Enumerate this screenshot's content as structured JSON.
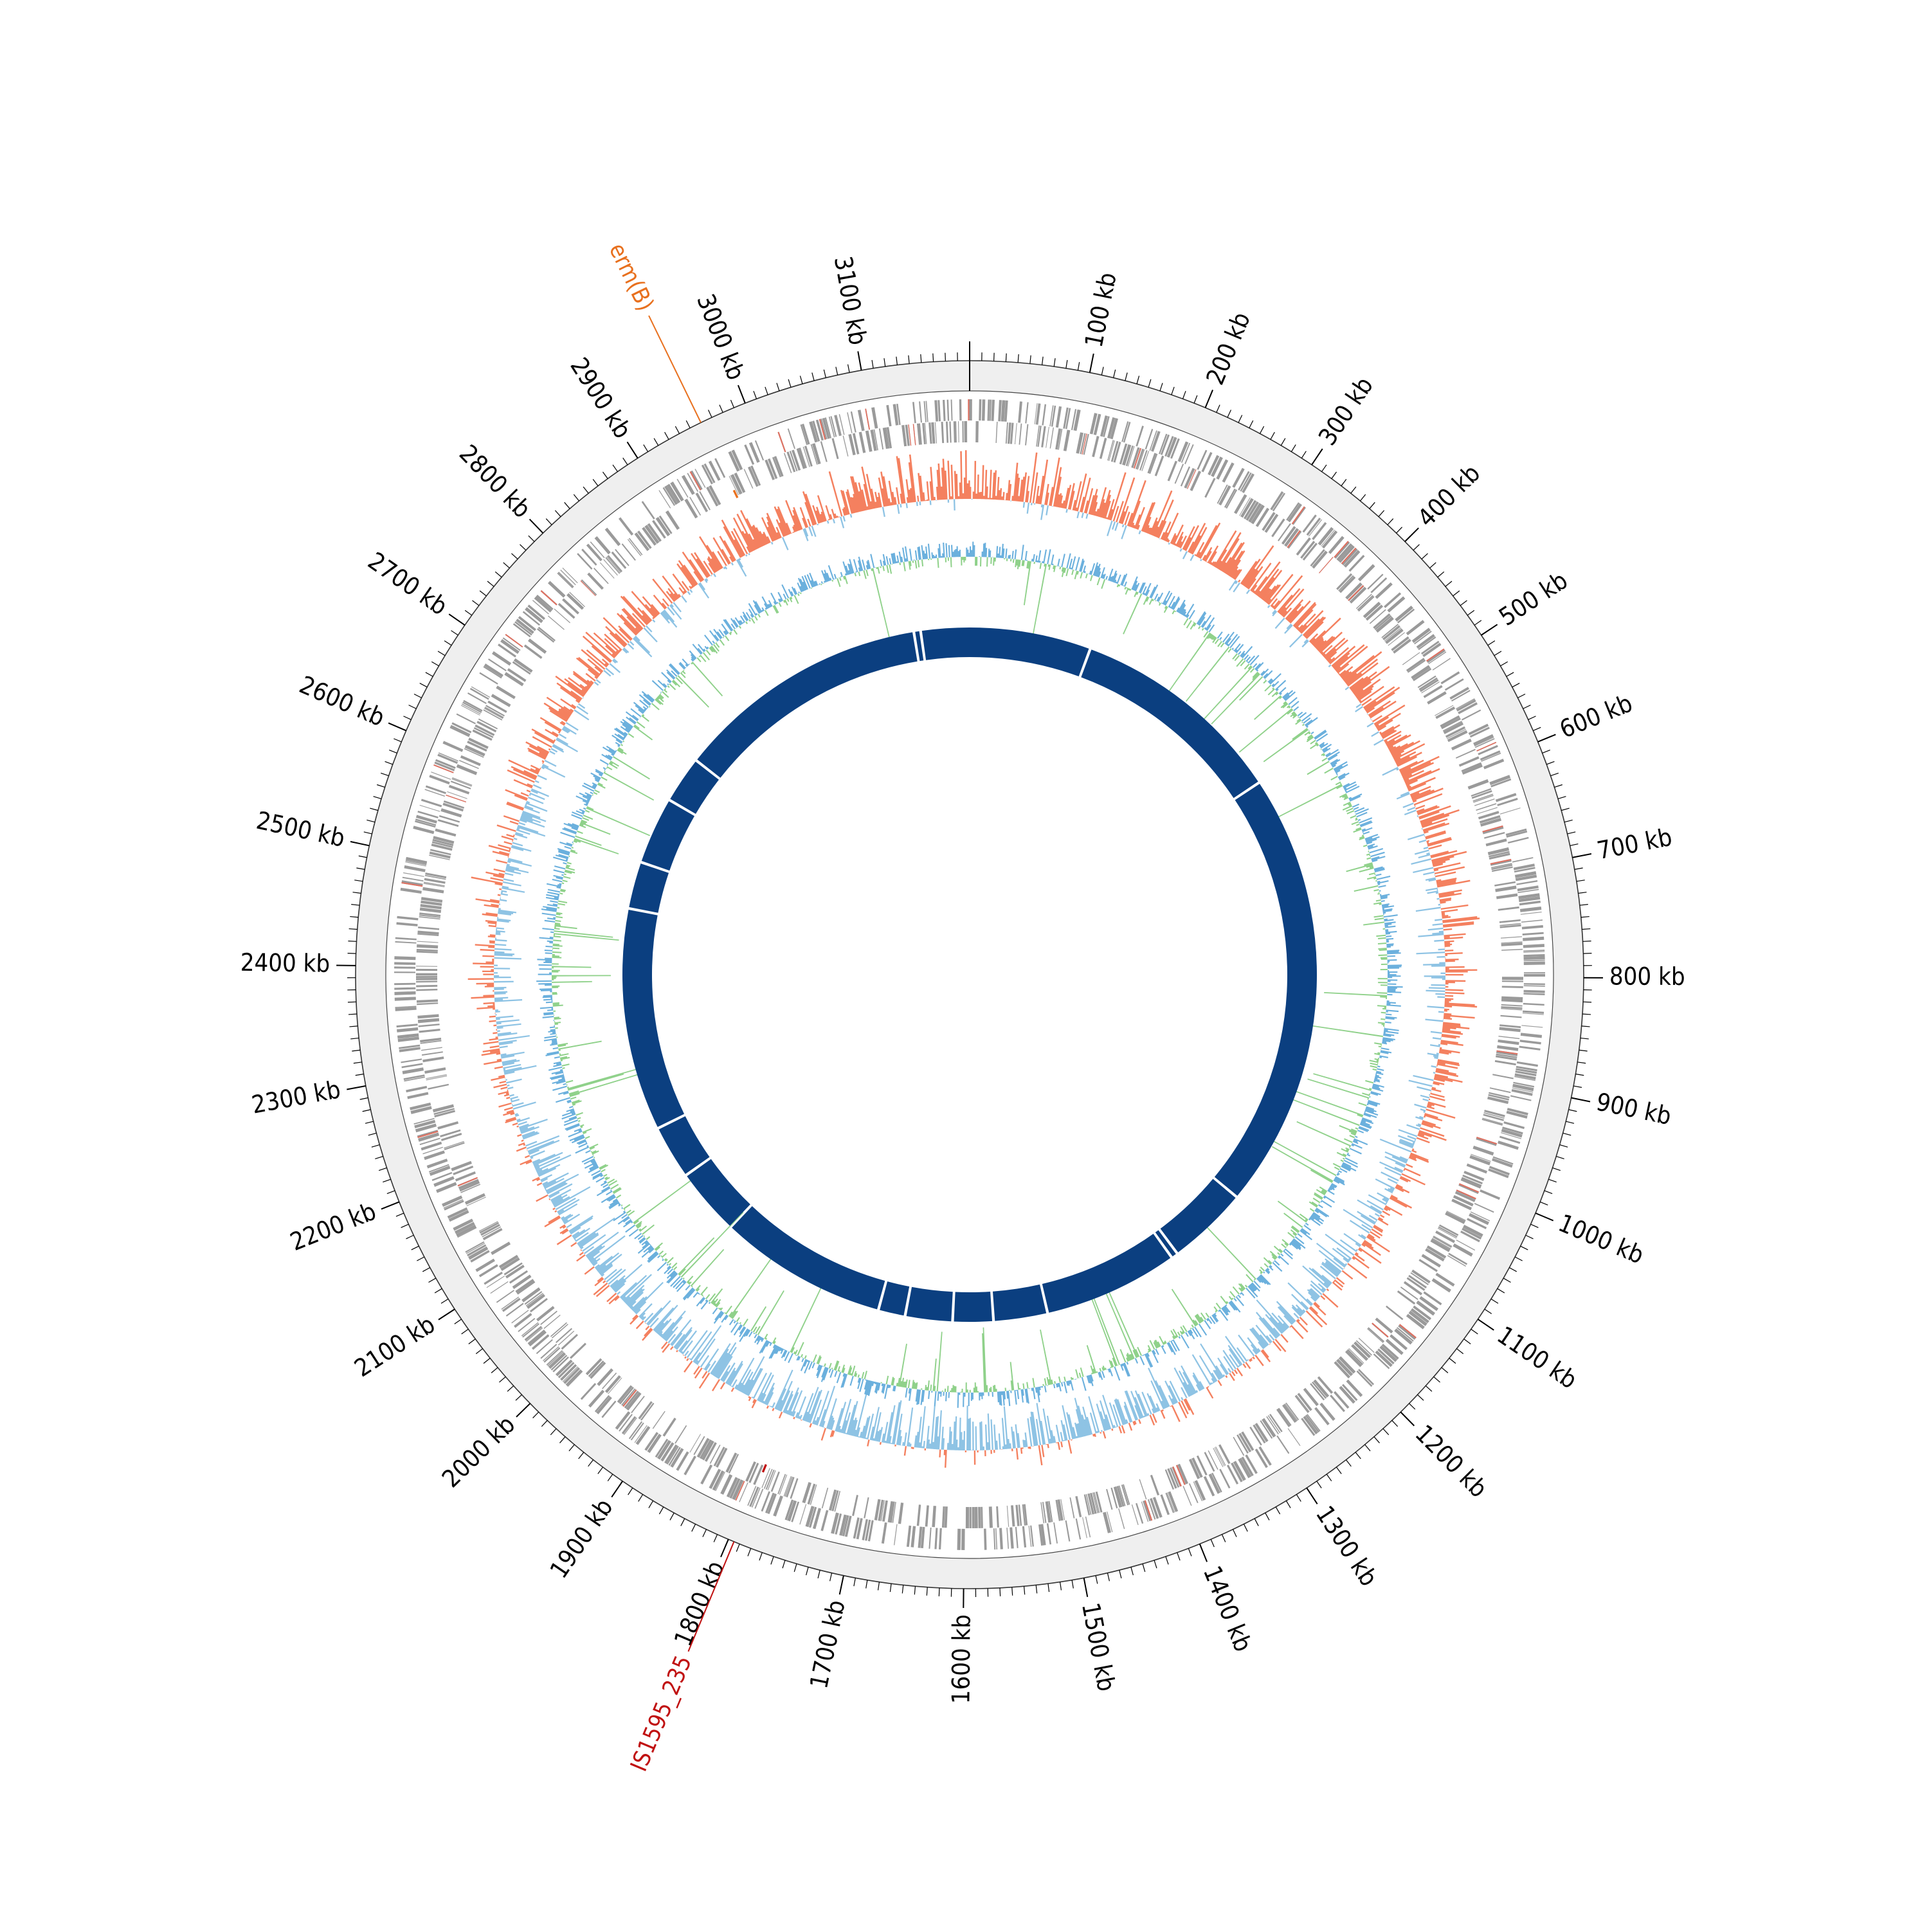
{
  "genome": {
    "length_kb": 3190,
    "tick_step_kb": 100,
    "tick_labels": [
      "100 kb",
      "200 kb",
      "300 kb",
      "400 kb",
      "500 kb",
      "600 kb",
      "700 kb",
      "800 kb",
      "900 kb",
      "1000 kb",
      "1100 kb",
      "1200 kb",
      "1300 kb",
      "1400 kb",
      "1500 kb",
      "1600 kb",
      "1700 kb",
      "1800 kb",
      "1900 kb",
      "2000 kb",
      "2100 kb",
      "2200 kb",
      "2300 kb",
      "2400 kb",
      "2500 kb",
      "2600 kb",
      "2700 kb",
      "2800 kb",
      "2900 kb",
      "3000 kb",
      "3100 kb"
    ]
  },
  "annotations": [
    {
      "label": "erm(B)",
      "position_kb": 2960,
      "color": "#e8701e"
    },
    {
      "label": "IS1595_235",
      "position_kb": 1795,
      "color": "#c01010"
    }
  ],
  "tracks": {
    "outer_ring_color": "#efefef",
    "gene_color": "#9a9a9a",
    "gene_highlight_color": "#e07060",
    "gc_skew_positive_color": "#f4805f",
    "gc_skew_negative_color": "#8ec3e4",
    "gc_content_positive_color": "#8fd18a",
    "gc_content_negative_color": "#6bb0dd",
    "contig_color": "#0b3f80",
    "contig_gaps_kb": [
      3108,
      3118,
      180,
      500,
      1150,
      1270,
      1280,
      1480,
      1560,
      1620,
      1690,
      1730,
      1980,
      2080,
      2160,
      2490,
      2560,
      2660,
      2730
    ]
  }
}
